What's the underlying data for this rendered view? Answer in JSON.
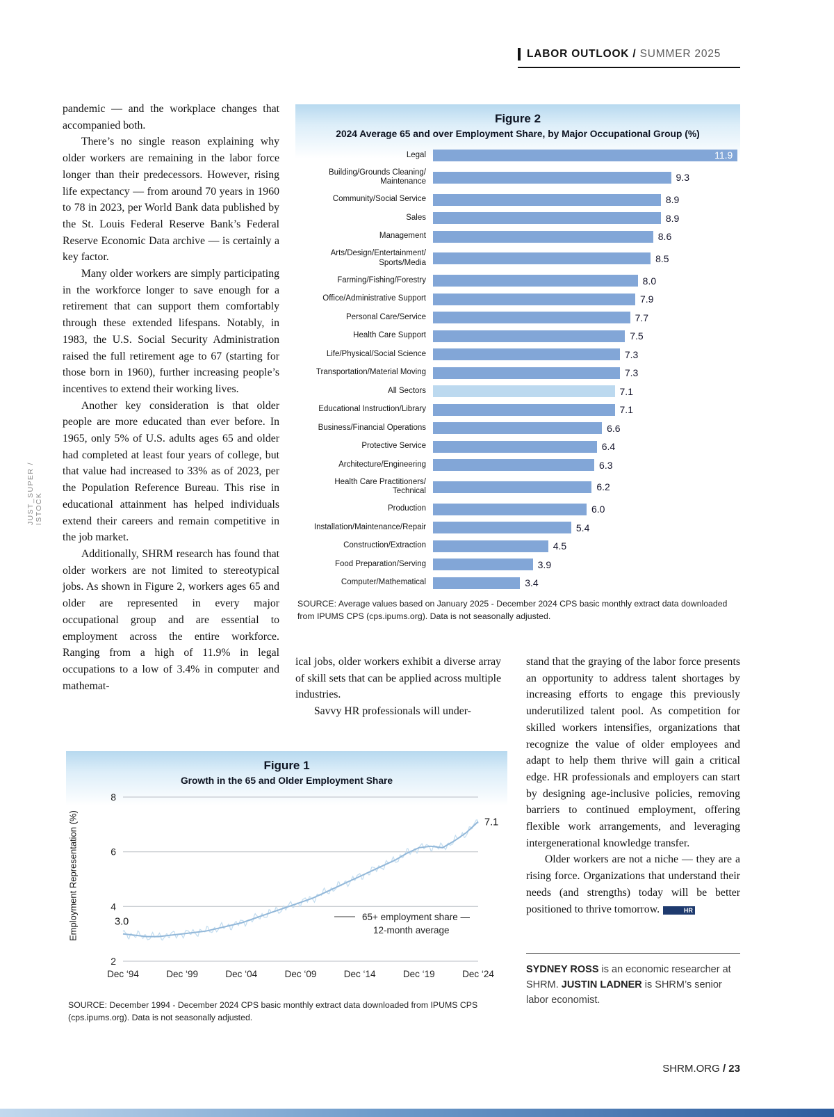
{
  "header": {
    "label": "LABOR OUTLOOK /",
    "issue": " SUMMER 2025"
  },
  "photo_credit": "JUST_SUPER / ISTOCK",
  "footer": {
    "site": "SHRM.ORG ",
    "page": "/ 23"
  },
  "article": {
    "column1": [
      "pandemic — and the workplace changes that accompanied both.",
      "There’s no single reason explaining why older workers are remaining in the labor force longer than their predecessors. However, rising life expectancy — from around 70 years in 1960 to 78 in 2023, per World Bank data published by the St. Louis Federal Reserve Bank’s Federal Reserve Economic Data archive — is certainly a key factor.",
      "Many older workers are simply participating in the workforce longer to save enough for a retirement that can support them comfortably through these extended lifespans. Notably, in 1983, the U.S. Social Security Administration raised the full retirement age to 67 (starting for those born in 1960), further increasing people’s incentives to extend their working lives.",
      "Another key consideration is that older people are more educated than ever before. In 1965, only 5% of U.S. adults ages 65 and older had completed at least four years of college, but that value had increased to 33% as of 2023, per the Population Reference Bureau. This rise in educational attainment has helped individuals extend their careers and remain competitive in the job market.",
      "Additionally, SHRM research has found that older workers are not limited to stereotypical jobs. As shown in Figure 2, workers ages 65 and older are represented in every major occupational group and are essential to employment across the entire workforce. Ranging from a high of 11.9% in legal occupations to a low of 3.4% in computer and mathemat-"
    ],
    "column2": [
      "ical jobs, older workers exhibit a diverse array of skill sets that can be applied across multiple industries.",
      "Savvy HR professionals will under-"
    ],
    "column3": [
      "stand that the graying of the labor force presents an opportunity to address talent shortages by increasing efforts to engage this previously underutilized talent pool. As competition for skilled workers intensifies, organizations that recognize the value of older employees and adapt to help them thrive will gain a critical edge. HR professionals and employers can start by designing age-inclusive policies, removing barriers to continued employment, offering flexible work arrangements, and leveraging intergenerational knowledge transfer.",
      "Older workers are not a niche — they are a rising force. Organizations that understand their needs (and strengths) today will be better positioned to thrive tomorrow."
    ],
    "endmark": "HR",
    "bio_runs": [
      {
        "text": "SYDNEY ROSS",
        "bold": true
      },
      {
        "text": " is an economic researcher at SHRM. ",
        "bold": false
      },
      {
        "text": "JUSTIN LADNER",
        "bold": true
      },
      {
        "text": " is SHRM’s senior labor economist.",
        "bold": false
      }
    ]
  },
  "chart_data": [
    {
      "type": "bar",
      "orientation": "horizontal",
      "figure_label": "Figure 2",
      "title": "2024 Average 65 and over Employment Share, by Major Occupational Group (%)",
      "categories": [
        "Legal",
        "Building/Grounds Cleaning/\nMaintenance",
        "Community/Social Service",
        "Sales",
        "Management",
        "Arts/Design/Entertainment/\nSports/Media",
        "Farming/Fishing/Forestry",
        "Office/Administrative Support",
        "Personal Care/Service",
        "Health Care Support",
        "Life/Physical/Social Science",
        "Transportation/Material Moving",
        "All Sectors",
        "Educational Instruction/Library",
        "Business/Financial Operations",
        "Protective Service",
        "Architecture/Engineering",
        "Health Care Practitioners/\nTechnical",
        "Production",
        "Installation/Maintenance/Repair",
        "Construction/Extraction",
        "Food Preparation/Serving",
        "Computer/Mathematical"
      ],
      "values": [
        11.9,
        9.3,
        8.9,
        8.9,
        8.6,
        8.5,
        8.0,
        7.9,
        7.7,
        7.5,
        7.3,
        7.3,
        7.1,
        7.1,
        6.6,
        6.4,
        6.3,
        6.2,
        6.0,
        5.4,
        4.5,
        3.9,
        3.4
      ],
      "highlight_category": "All Sectors",
      "bar_color": "#82a6d7",
      "highlight_color": "#bcd9ef",
      "xlim": [
        0,
        12
      ],
      "xlabel": "",
      "source": "SOURCE: Average values based on January 2025 - December 2024 CPS basic monthly extract data downloaded from IPUMS CPS (cps.ipums.org). Data is not seasonally adjusted."
    },
    {
      "type": "line",
      "figure_label": "Figure 1",
      "title": "Growth in the 65 and Older Employment Share",
      "ylabel": "Employment Representation (%)",
      "ylim": [
        2,
        8
      ],
      "yticks": [
        2,
        4,
        6,
        8
      ],
      "x_start": 1994,
      "x_step_years": 1,
      "xticks": [
        "Dec ‘94",
        "Dec ‘99",
        "Dec ‘04",
        "Dec ‘09",
        "Dec ‘14",
        "Dec ‘19",
        "Dec ‘24"
      ],
      "xtick_interval": 5,
      "series": [
        {
          "name": "65+ employment share — 12-month average",
          "values": [
            3.0,
            2.95,
            2.9,
            2.9,
            2.95,
            3.0,
            3.05,
            3.1,
            3.2,
            3.3,
            3.4,
            3.55,
            3.7,
            3.85,
            4.0,
            4.15,
            4.3,
            4.5,
            4.7,
            4.9,
            5.1,
            5.3,
            5.5,
            5.7,
            5.95,
            6.15,
            6.2,
            6.15,
            6.4,
            6.7,
            7.1
          ]
        }
      ],
      "series_colors": {
        "monthly": "#c2dcef",
        "average": "#93b8d9"
      },
      "annotations": [
        {
          "label": "3.0",
          "year": 1994,
          "value": 3.0,
          "placement": "above"
        },
        {
          "label": "7.1",
          "year": 2024,
          "value": 7.1,
          "placement": "right"
        }
      ],
      "legend": {
        "sample_color": "#9a9a9a",
        "lines": [
          "65+ employment share —",
          "12-month average"
        ]
      },
      "grid": true,
      "source": "SOURCE: December 1994 - December 2024 CPS basic monthly extract data downloaded from IPUMS CPS (cps.ipums.org). Data is not seasonally adjusted."
    }
  ]
}
